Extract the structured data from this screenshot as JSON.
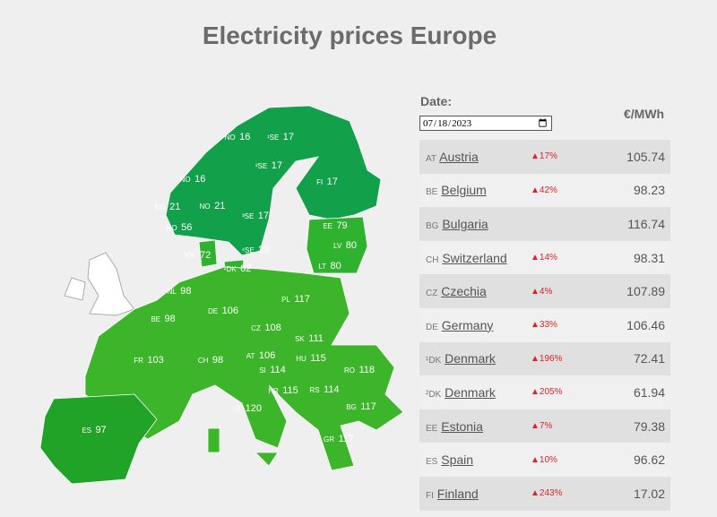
{
  "header": {
    "title": "Electricity prices Europe"
  },
  "controls": {
    "date_label": "Date:",
    "date_value": "2023-07-18"
  },
  "table": {
    "unit": "€/MWh",
    "rows": [
      {
        "code": "AT",
        "name": "Austria",
        "change": "17%",
        "price": 105.74
      },
      {
        "code": "BE",
        "name": "Belgium",
        "change": "42%",
        "price": 98.23
      },
      {
        "code": "BG",
        "name": "Bulgaria",
        "price": 116.74
      },
      {
        "code": "CH",
        "name": "Switzerland",
        "change": "14%",
        "price": 98.31
      },
      {
        "code": "CZ",
        "name": "Czechia",
        "change": "4%",
        "price": 107.89
      },
      {
        "code": "DE",
        "name": "Germany",
        "change": "33%",
        "price": 106.46
      },
      {
        "code": "¹DK",
        "name": "Denmark",
        "change": "196%",
        "price": 72.41
      },
      {
        "code": "²DK",
        "name": "Denmark",
        "change": "205%",
        "price": 61.94
      },
      {
        "code": "EE",
        "name": "Estonia",
        "change": "7%",
        "price": 79.38
      },
      {
        "code": "ES",
        "name": "Spain",
        "change": "10%",
        "price": 96.62
      },
      {
        "code": "FI",
        "name": "Finland",
        "change": "243%",
        "price": 17.02
      }
    ]
  },
  "map": {
    "regions": [
      {
        "code": "NO",
        "value": 16
      },
      {
        "code": "¹SE",
        "value": 17
      },
      {
        "code": "²SE",
        "value": 17
      },
      {
        "code": "FI",
        "value": 17
      },
      {
        "code": "NO",
        "value": 16
      },
      {
        "code": "NO",
        "value": 21
      },
      {
        "code": "NO",
        "value": 21
      },
      {
        "code": "³SE",
        "value": 17
      },
      {
        "code": "NO",
        "value": 56
      },
      {
        "code": "EE",
        "value": 79
      },
      {
        "code": "LV",
        "value": 80
      },
      {
        "code": "LT",
        "value": 80
      },
      {
        "code": "⁴SE",
        "value": 29
      },
      {
        "code": "¹DK",
        "value": 72
      },
      {
        "code": "²DK",
        "value": 62
      },
      {
        "code": "NL",
        "value": 98
      },
      {
        "code": "PL",
        "value": 117
      },
      {
        "code": "BE",
        "value": 98
      },
      {
        "code": "DE",
        "value": 106
      },
      {
        "code": "CZ",
        "value": 108
      },
      {
        "code": "SK",
        "value": 111
      },
      {
        "code": "FR",
        "value": 103
      },
      {
        "code": "CH",
        "value": 98
      },
      {
        "code": "AT",
        "value": 106
      },
      {
        "code": "HU",
        "value": 115
      },
      {
        "code": "RO",
        "value": 118
      },
      {
        "code": "SI",
        "value": 114
      },
      {
        "code": "HR",
        "value": 115
      },
      {
        "code": "RS",
        "value": 114
      },
      {
        "code": "BG",
        "value": 117
      },
      {
        "code": "IT",
        "value": 120
      },
      {
        "code": "GR",
        "value": 117
      },
      {
        "code": "ES",
        "value": 97
      }
    ]
  }
}
